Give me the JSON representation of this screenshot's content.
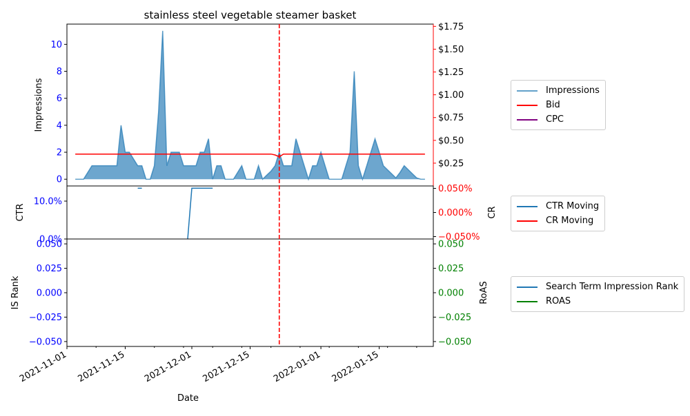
{
  "chart_data": {
    "type": "line",
    "title": "stainless steel vegetable steamer basket",
    "xlabel": "Date",
    "x_ticks": [
      "2021-11-01",
      "2021-11-15",
      "2021-12-01",
      "2021-12-15",
      "2022-01-01",
      "2022-01-15"
    ],
    "x_range": [
      "2021-11-01",
      "2022-01-28"
    ],
    "event_line_date": "2021-12-22",
    "colors": {
      "impressions": "#1f77b4",
      "bid": "#ff0000",
      "cpc": "#800080",
      "ctr": "#1f77b4",
      "cr": "#ff0000",
      "is_rank": "#1f77b4",
      "roas": "#008000",
      "left_tick": "#0000ff",
      "event_line": "#ff0000"
    },
    "panels": [
      {
        "id": "impressions",
        "left_label": "Impressions",
        "left_range": [
          -0.5,
          11.5
        ],
        "left_ticks": [
          "0",
          "2",
          "4",
          "6",
          "8",
          "10"
        ],
        "right_label": "",
        "right_range": [
          0,
          1.775
        ],
        "right_ticks": [
          "$0.25",
          "$0.50",
          "$0.75",
          "$1.00",
          "$1.25",
          "$1.50",
          "$1.75"
        ],
        "series": [
          {
            "name": "Impressions",
            "type": "area",
            "x": [
              "2021-11-03",
              "2021-11-05",
              "2021-11-07",
              "2021-11-08",
              "2021-11-09",
              "2021-11-10",
              "2021-11-11",
              "2021-11-12",
              "2021-11-13",
              "2021-11-14",
              "2021-11-15",
              "2021-11-16",
              "2021-11-17",
              "2021-11-18",
              "2021-11-19",
              "2021-11-20",
              "2021-11-21",
              "2021-11-22",
              "2021-11-23",
              "2021-11-24",
              "2021-11-25",
              "2021-11-26",
              "2021-11-27",
              "2021-11-28",
              "2021-11-29",
              "2021-11-30",
              "2021-12-01",
              "2021-12-02",
              "2021-12-03",
              "2021-12-04",
              "2021-12-05",
              "2021-12-06",
              "2021-12-07",
              "2021-12-08",
              "2021-12-09",
              "2021-12-10",
              "2021-12-11",
              "2021-12-12",
              "2021-12-13",
              "2021-12-14",
              "2021-12-15",
              "2021-12-16",
              "2021-12-17",
              "2021-12-18",
              "2021-12-19",
              "2021-12-20",
              "2021-12-21",
              "2021-12-22",
              "2021-12-23",
              "2021-12-24",
              "2021-12-25",
              "2021-12-26",
              "2021-12-27",
              "2021-12-28",
              "2021-12-29",
              "2021-12-30",
              "2021-12-31",
              "2022-01-01",
              "2022-01-02",
              "2022-01-03",
              "2022-01-04",
              "2022-01-05",
              "2022-01-06",
              "2022-01-07",
              "2022-01-08",
              "2022-01-09",
              "2022-01-10",
              "2022-01-11",
              "2022-01-12",
              "2022-01-13",
              "2022-01-14",
              "2022-01-15",
              "2022-01-16",
              "2022-01-17",
              "2022-01-18",
              "2022-01-19",
              "2022-01-20",
              "2022-01-21",
              "2022-01-22",
              "2022-01-23",
              "2022-01-24",
              "2022-01-25",
              "2022-01-26"
            ],
            "values": [
              0,
              0,
              1,
              1,
              1,
              1,
              1,
              1,
              1,
              4,
              2,
              2,
              1.5,
              1,
              1,
              0,
              0,
              1,
              5,
              11,
              1,
              2,
              2,
              2,
              1,
              1,
              1,
              1,
              2,
              2,
              3,
              0,
              1,
              1,
              0,
              0,
              0,
              0.5,
              1,
              0,
              0,
              0,
              1,
              0,
              0.3,
              0.6,
              1,
              2,
              1,
              1,
              1,
              3,
              2,
              1,
              0,
              1,
              1,
              2,
              1,
              0,
              0,
              0,
              0,
              1,
              2,
              8,
              1,
              0,
              1,
              2,
              3,
              2,
              1,
              0.7,
              0.4,
              0.1,
              0.5,
              1,
              0.7,
              0.4,
              0.1,
              0,
              0
            ]
          },
          {
            "name": "Bid",
            "type": "line",
            "x": [
              "2021-11-03",
              "2021-12-19",
              "2021-12-20",
              "2021-12-21",
              "2021-12-22",
              "2021-12-23",
              "2022-01-26"
            ],
            "values": [
              0.35,
              0.35,
              0.35,
              0.34,
              0.32,
              0.35,
              0.35
            ]
          },
          {
            "name": "CPC",
            "type": "line",
            "x": [],
            "values": []
          }
        ]
      },
      {
        "id": "ctr",
        "left_label": "CTR",
        "left_range": [
          0,
          0.14
        ],
        "left_ticks": [
          "0.0%",
          "10.0%"
        ],
        "right_label": "CR",
        "right_range": [
          -0.00055,
          0.00055
        ],
        "right_ticks": [
          "−0.050%",
          "0.000%",
          "0.050%"
        ],
        "series": [
          {
            "name": "CTR Moving",
            "type": "line",
            "segments": [
              {
                "x": [
                  "2021-11-18",
                  "2021-11-19"
                ],
                "values": [
                  0.134,
                  0.134
                ]
              },
              {
                "x": [
                  "2021-11-30",
                  "2021-12-01",
                  "2021-12-06"
                ],
                "values": [
                  0,
                  0.134,
                  0.134
                ]
              }
            ]
          },
          {
            "name": "CR Moving",
            "type": "line",
            "x": [],
            "values": []
          }
        ]
      },
      {
        "id": "is_rank",
        "left_label": "IS Rank",
        "left_range": [
          -0.055,
          0.055
        ],
        "left_ticks": [
          "−0.050",
          "−0.025",
          "0.000",
          "0.025",
          "0.050"
        ],
        "right_label": "RoAS",
        "right_range": [
          -0.055,
          0.055
        ],
        "right_ticks": [
          "−0.050",
          "−0.025",
          "0.000",
          "0.025",
          "0.050"
        ],
        "series": [
          {
            "name": "Search Term Impression Rank",
            "type": "line",
            "x": [],
            "values": []
          },
          {
            "name": "ROAS",
            "type": "line",
            "x": [],
            "values": []
          }
        ]
      }
    ],
    "legends": [
      {
        "items": [
          {
            "label": "Impressions",
            "color": "#1f77b4"
          },
          {
            "label": "Bid",
            "color": "#ff0000"
          },
          {
            "label": "CPC",
            "color": "#800080"
          }
        ]
      },
      {
        "items": [
          {
            "label": "CTR Moving",
            "color": "#1f77b4"
          },
          {
            "label": "CR Moving",
            "color": "#ff0000"
          }
        ]
      },
      {
        "items": [
          {
            "label": "Search Term Impression Rank",
            "color": "#1f77b4"
          },
          {
            "label": "ROAS",
            "color": "#008000"
          }
        ]
      }
    ]
  }
}
